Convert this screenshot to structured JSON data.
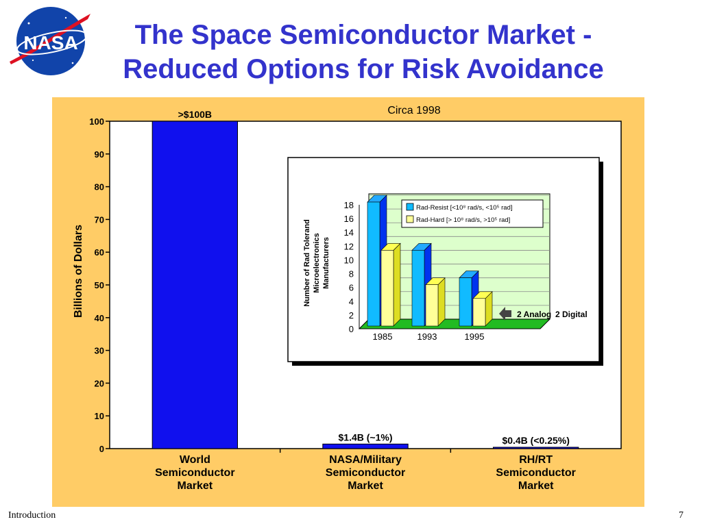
{
  "slide": {
    "title_line1": "The Space Semiconductor Market -",
    "title_line2": "Reduced Options for Risk Avoidance",
    "logo_text": "NASA",
    "footer_section": "Introduction",
    "page_number": "7"
  },
  "chart_data": [
    {
      "type": "bar",
      "subtitle": "Circa 1998",
      "ylabel": "Billions of Dollars",
      "ylim": [
        0,
        100
      ],
      "yticks": [
        0,
        10,
        20,
        30,
        40,
        50,
        60,
        70,
        80,
        90,
        100
      ],
      "categories": [
        [
          "World",
          "Semiconductor",
          "Market"
        ],
        [
          "NASA/Military",
          "Semiconductor",
          "Market"
        ],
        [
          "RH/RT",
          "Semiconductor",
          "Market"
        ]
      ],
      "values": [
        100,
        1.4,
        0.4
      ],
      "data_labels": [
        ">$100B",
        "$1.4B (~1%)",
        "$0.4B (<0.25%)"
      ],
      "bar_color": "#1010ee",
      "background": "#ffcc66",
      "grid": false
    },
    {
      "type": "bar",
      "ylabel": [
        "Number of Rad Tolerand",
        "Microelectronics",
        "Manufacturers"
      ],
      "ylim": [
        0,
        18
      ],
      "yticks": [
        0,
        2,
        4,
        6,
        8,
        10,
        12,
        14,
        16,
        18
      ],
      "categories": [
        "1985",
        "1993",
        "1995"
      ],
      "series": [
        {
          "name": "Rad-Resist [<10⁸ rad/s, <10⁵ rad]",
          "values": [
            18,
            11,
            7
          ],
          "color": "#11bbff"
        },
        {
          "name": "Rad-Hard [> 10⁸ rad/s, >10⁵ rad]",
          "values": [
            11,
            6,
            4
          ],
          "color": "#ffff99"
        }
      ],
      "annotation": {
        "text_a": "2 Analog",
        "text_b": "2 Digital"
      },
      "legend_position": "top-right",
      "grid": true,
      "plot_background": "#ddffcc",
      "floor_color": "#22bb22"
    }
  ]
}
